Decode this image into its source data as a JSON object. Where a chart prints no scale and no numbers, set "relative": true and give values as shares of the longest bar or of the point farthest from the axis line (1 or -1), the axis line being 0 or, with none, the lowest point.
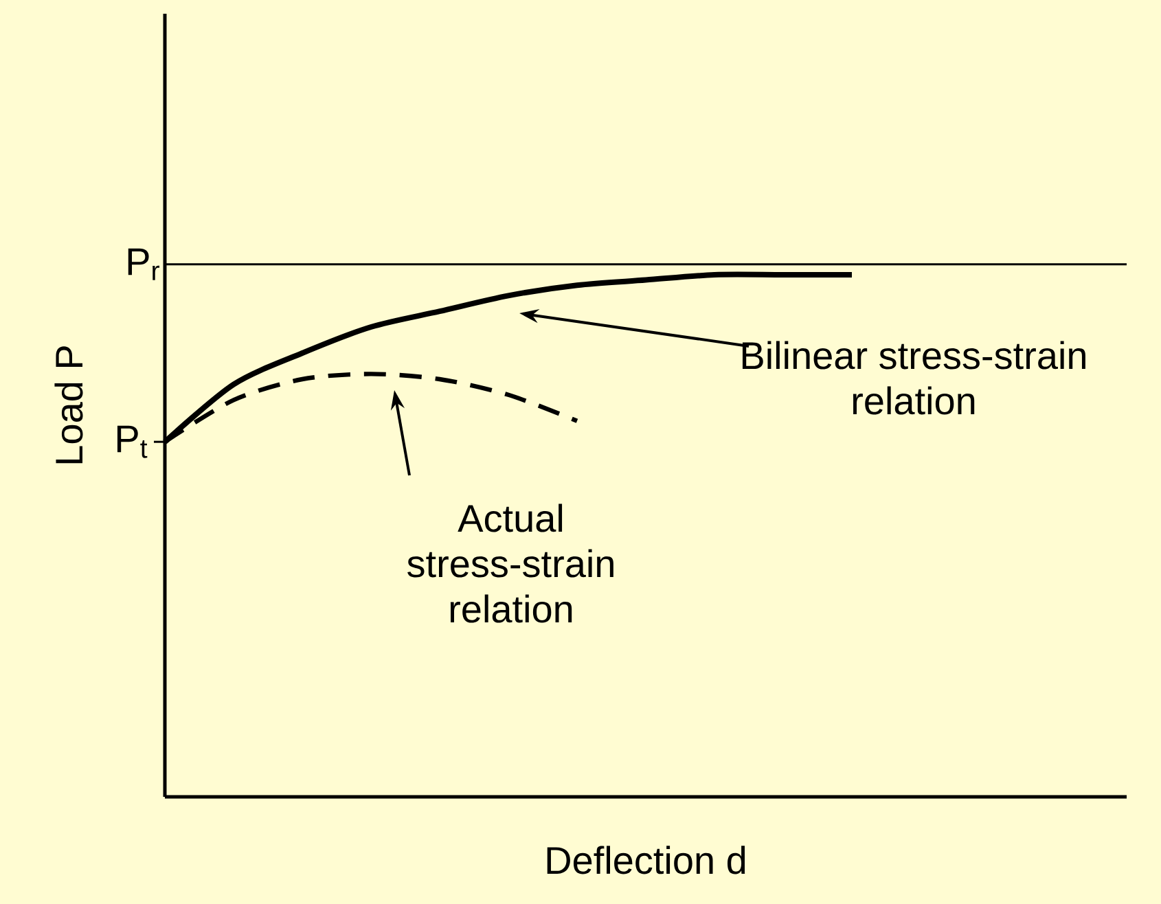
{
  "chart_data": {
    "type": "line",
    "relative": true,
    "xlabel": "Deflection d",
    "ylabel": "Load P",
    "categories": [
      null,
      null,
      null,
      null,
      null,
      null,
      null,
      null,
      null,
      null,
      null,
      null,
      null,
      null,
      null
    ],
    "series": [
      {
        "color": "#000000",
        "line_style": "solid",
        "values": [
          0.68,
          0.79,
          0.85,
          0.9,
          0.93,
          0.96,
          0.98,
          0.99,
          1.0,
          1.0,
          1.0,
          null,
          null,
          null,
          null
        ]
      },
      {
        "color": "#000000",
        "line_style": "dashed",
        "values": [
          0.68,
          0.76,
          0.8,
          0.81,
          0.8,
          0.77,
          0.72,
          null,
          null,
          null,
          null,
          null,
          null,
          null,
          null
        ]
      }
    ],
    "ref_lines": [
      {
        "axis": "y",
        "value": 1.02,
        "label": "P$_{r}$",
        "color": "#000000"
      }
    ],
    "annotations": [
      "P$_{t}$",
      "Bilinear stress-strain relation",
      "Actual stress-strain relation"
    ],
    "marker": "none"
  }
}
